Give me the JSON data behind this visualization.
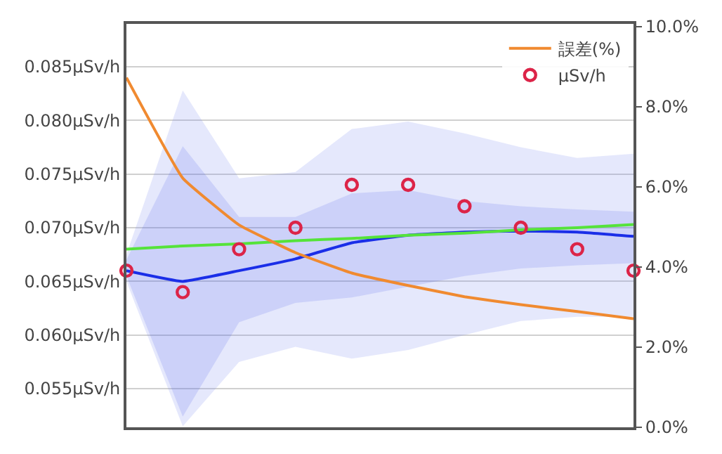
{
  "chart_data": {
    "type": "line",
    "categories": [
      null,
      null,
      null,
      null,
      null,
      null,
      null,
      null,
      null,
      null
    ],
    "series": [
      {
        "color": "#7d8cf2",
        "values": [
          null,
          null,
          null,
          null,
          null,
          null,
          null,
          null,
          null,
          null
        ],
        "lower": [
          0.065,
          0.0515,
          0.0575,
          0.0589,
          0.0578,
          0.0586,
          0.06,
          0.0613,
          0.0617,
          0.0617
        ],
        "upper": [
          0.0675,
          0.0828,
          0.0746,
          0.0752,
          0.0792,
          0.0799,
          0.0788,
          0.0775,
          0.0765,
          0.0769
        ]
      },
      {
        "color": "#1a2ee8",
        "values": [
          0.066,
          0.065,
          0.066,
          0.0671,
          0.0686,
          0.0693,
          0.0696,
          0.0697,
          0.0696,
          0.0692
        ],
        "lower": [
          0.0655,
          0.0524,
          0.0612,
          0.063,
          0.0635,
          0.0645,
          0.0655,
          0.0662,
          0.0665,
          0.0667
        ],
        "upper": [
          0.067,
          0.0776,
          0.071,
          0.071,
          0.0732,
          0.0735,
          0.0725,
          0.072,
          0.0717,
          0.0715
        ]
      },
      {
        "color": "#55e33a",
        "values": [
          0.068,
          0.0683,
          0.0685,
          0.0688,
          0.069,
          0.0693,
          0.0695,
          0.0698,
          0.07,
          0.0703
        ]
      },
      {
        "name": "誤差(%)",
        "color": "#f08a30",
        "axis": "y2",
        "values": [
          8.73,
          6.22,
          5.05,
          4.36,
          3.85,
          3.54,
          3.26,
          3.06,
          2.89,
          2.71
        ]
      },
      {
        "type": "scatter",
        "name": "μSv/h",
        "color": "#dc2448",
        "marker": "circle",
        "values": [
          0.066,
          0.064,
          0.068,
          0.07,
          0.074,
          0.074,
          0.072,
          0.07,
          0.068,
          0.066
        ]
      }
    ],
    "ylim": [
      0.0514,
      0.089
    ],
    "yticks": [
      {
        "value": 0.055,
        "label": "0.055μSv/h"
      },
      {
        "value": 0.06,
        "label": "0.060μSv/h"
      },
      {
        "value": 0.065,
        "label": "0.065μSv/h"
      },
      {
        "value": 0.07,
        "label": "0.070μSv/h"
      },
      {
        "value": 0.075,
        "label": "0.075μSv/h"
      },
      {
        "value": 0.08,
        "label": "0.080μSv/h"
      },
      {
        "value": 0.085,
        "label": "0.085μSv/h"
      }
    ],
    "y2lim": [
      0,
      10.07
    ],
    "y2ticks": [
      {
        "value": 0,
        "label": "0.0%"
      },
      {
        "value": 2,
        "label": "2.0%"
      },
      {
        "value": 4,
        "label": "4.0%"
      },
      {
        "value": 6,
        "label": "6.0%"
      },
      {
        "value": 8,
        "label": "8.0%"
      },
      {
        "value": 10,
        "label": "10.0%"
      }
    ],
    "grid": "y",
    "legend": "top right"
  }
}
